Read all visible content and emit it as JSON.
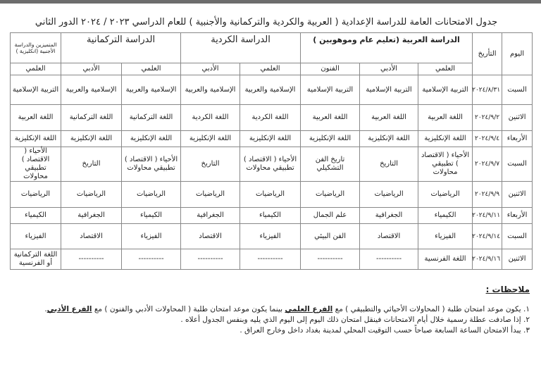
{
  "title": "جدول الامتحانات العامة للدراسة الإعدادية ( العربية والكردية والتركمانية والأجنبية ) للعام الدراسي ٢٠٢٣ / ٢٠٢٤ الدور الثاني",
  "headers": {
    "day": "اليوم",
    "date": "التأريخ",
    "arabic": "الدراسة العربية (تعليم عام وموهوبين )",
    "kurdish": "الدراسة الكردية",
    "turkmen": "الدراسة التركمانية",
    "foreign": "المتميزين والدراسة الأجنبية (انكليزية )",
    "sub": [
      "العلمي",
      "الأدبي",
      "الفنون",
      "العلمي",
      "الأدبي",
      "العلمي",
      "الأدبي",
      "العلمي"
    ]
  },
  "rows": [
    {
      "day": "السبت",
      "date": "٢٠٢٤/٨/٣١",
      "cells": [
        "التربية الإسلامية",
        "التربية الإسلامية",
        "التربية الإسلامية",
        "الإسلامية والعربية",
        "الإسلامية والعربية",
        "الإسلامية والعربية",
        "الإسلامية والعربية",
        "التربية الإسلامية"
      ]
    },
    {
      "day": "الاثنين",
      "date": "٢٠٢٤/٩/٢",
      "cells": [
        "اللغة العربية",
        "اللغة العربية",
        "اللغة العربية",
        "اللغة الكردية",
        "اللغة الكردية",
        "اللغة التركمانية",
        "اللغة التركمانية",
        "اللغة العربية"
      ]
    },
    {
      "day": "الأربعاء",
      "date": "٢٠٢٤/٩/٤",
      "cells": [
        "اللغة الإنكليزية",
        "اللغة الإنكليزية",
        "اللغة الإنكليزية",
        "اللغة الإنكليزية",
        "اللغة الإنكليزية",
        "اللغة الإنكليزية",
        "اللغة الإنكليزية",
        "اللغة الإنكليزية"
      ]
    },
    {
      "day": "السبت",
      "date": "٢٠٢٤/٩/٧",
      "cells": [
        "الأحياء ( الاقتصاد ) تطبيقي محاولات",
        "التاريخ",
        "تاريخ الفن التشكيلي",
        "الأحياء ( الاقتصاد ) تطبيقي محاولات",
        "التاريخ",
        "الأحياء ( الاقتصاد ) تطبيقي محاولات",
        "التاريخ",
        "الأحياء ( الاقتصاد ) تطبيقي محاولات"
      ]
    },
    {
      "day": "الاثنين",
      "date": "٢٠٢٤/٩/٩",
      "cells": [
        "الرياضيات",
        "الرياضيات",
        "الرياضيات",
        "الرياضيات",
        "الرياضيات",
        "الرياضيات",
        "الرياضيات",
        "الرياضيات"
      ]
    },
    {
      "day": "الأربعاء",
      "date": "٢٠٢٤/٩/١١",
      "cells": [
        "الكيمياء",
        "الجغرافية",
        "علم الجمال",
        "الكيمياء",
        "الجغرافية",
        "الكيمياء",
        "الجغرافية",
        "الكيمياء"
      ]
    },
    {
      "day": "السبت",
      "date": "٢٠٢٤/٩/١٤",
      "cells": [
        "الفيزياء",
        "الاقتصاد",
        "الفن البيئي",
        "الفيزياء",
        "الاقتصاد",
        "الفيزياء",
        "الاقتصاد",
        "الفيزياء"
      ]
    },
    {
      "day": "الاثنين",
      "date": "٢٠٢٤/٩/١٦",
      "cells": [
        "اللغة الفرنسية",
        "----------",
        "----------",
        "----------",
        "----------",
        "----------",
        "----------",
        "اللغة التركمانية أو الفرنسية"
      ]
    }
  ],
  "notes": {
    "title": "ملاحظات :",
    "n1a": "١. يكون موعد امتحان طلبة ( المحاولات الأحيائي والتطبيقي ) مع ",
    "n1b": "الفرع العلمي",
    "n1c": " بينما يكون موعد امتحان طلبة ( المحاولات الأدبي والفنون ) مع ",
    "n1d": "الفرع الأدبي",
    "n1e": ".",
    "n2": "٢. إذا صادفت عطلة رسمية خلال أيام الامتحانات فينقل امتحان ذلك اليوم إلى اليوم الذي يليه وبنفس الجدول أعلاه .",
    "n3": "٣. يبدأ الامتحان الساعة السابعة صباحاً حسب التوقيت المحلي لمدينة بغداد داخل وخارج العراق ."
  }
}
